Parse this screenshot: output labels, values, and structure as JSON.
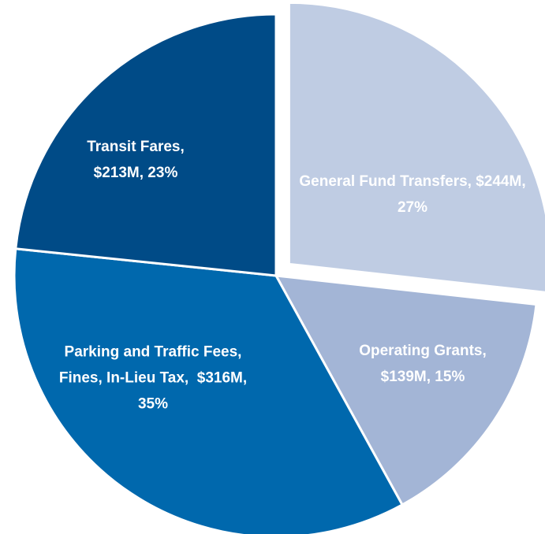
{
  "chart_data": {
    "type": "pie",
    "values": [
      244,
      139,
      316,
      213
    ],
    "value_labels": [
      "General Fund Transfers, $244M, 27%",
      "Operating Grants,  $139M, 15%",
      "Parking and Traffic Fees, Fines, In-Lieu Tax,  $316M, 35%",
      "Transit Fares, $213M, 23%"
    ],
    "colors": [
      "#bfcce3",
      "#a3b5d6",
      "#0068ad",
      "#004b87"
    ],
    "explode": [
      true,
      false,
      false,
      false
    ]
  }
}
